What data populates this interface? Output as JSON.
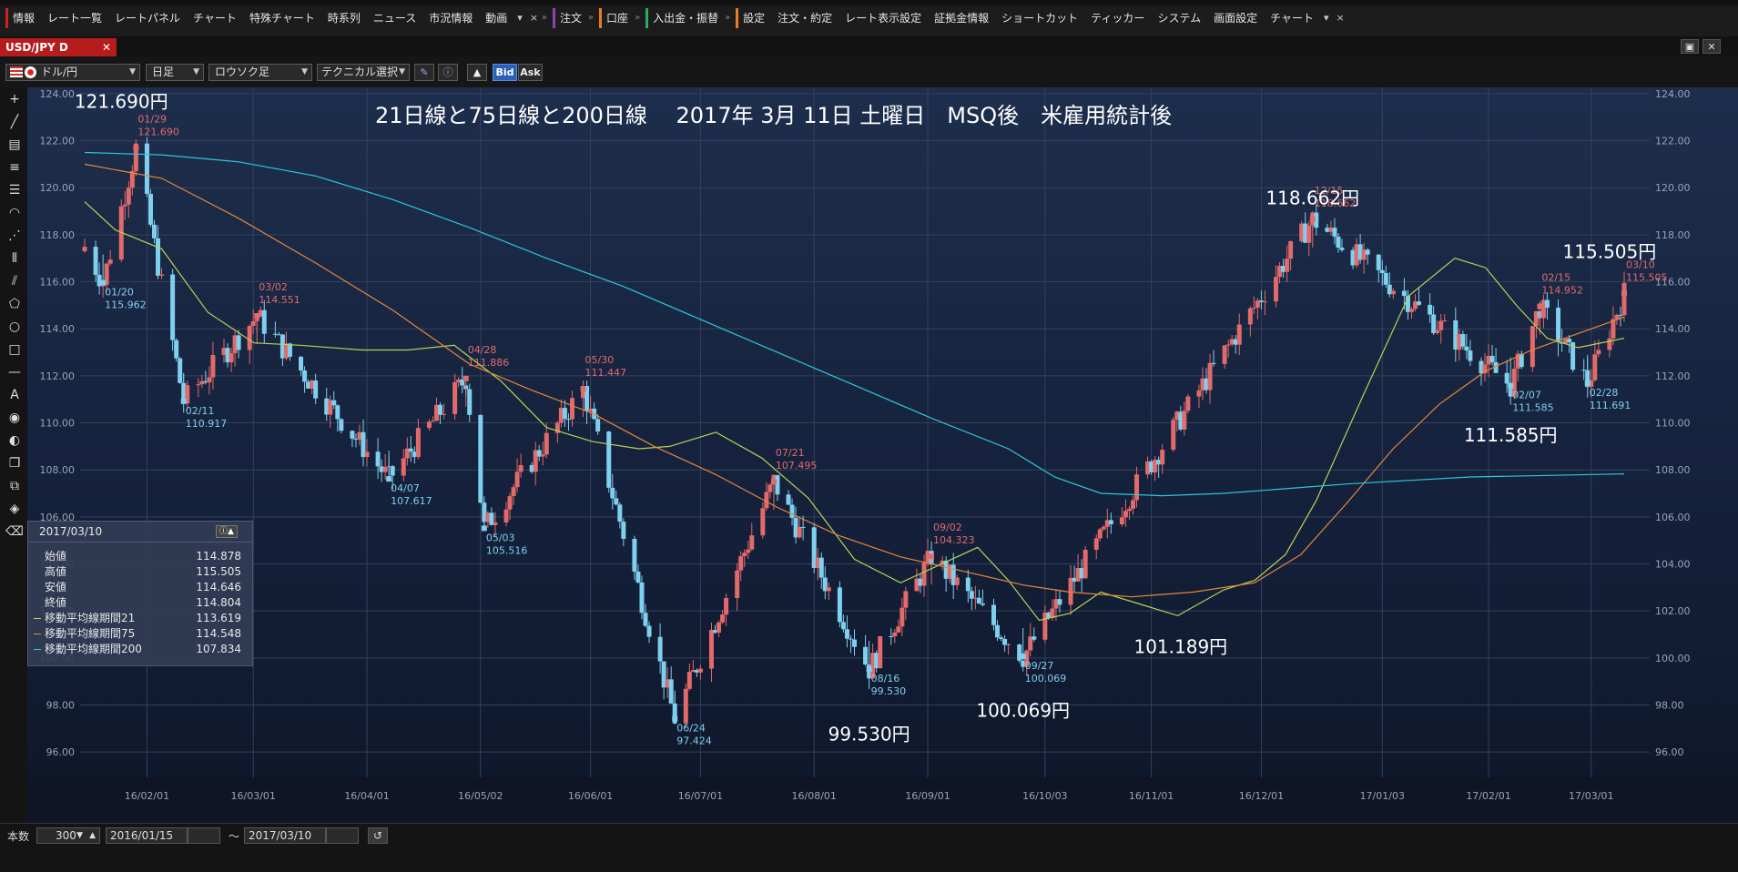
{
  "menubar": {
    "items": [
      {
        "label": "情報",
        "mark": "#cc2222"
      },
      {
        "label": "レート一覧"
      },
      {
        "label": "レートパネル"
      },
      {
        "label": "チャート"
      },
      {
        "label": "特殊チャート"
      },
      {
        "label": "時系列"
      },
      {
        "label": "ニュース"
      },
      {
        "label": "市況情報"
      },
      {
        "label": "動画"
      },
      {
        "label": "注文",
        "mark": "#8e44ad"
      },
      {
        "label": "口座",
        "mark": "#e67e22"
      },
      {
        "label": "入出金・振替",
        "mark": "#27ae60"
      },
      {
        "label": "設定",
        "mark": "#e67e22"
      },
      {
        "label": "注文・約定"
      },
      {
        "label": "レート表示設定"
      },
      {
        "label": "証拠金情報"
      },
      {
        "label": "ショートカット"
      },
      {
        "label": "ティッカー"
      },
      {
        "label": "システム"
      },
      {
        "label": "画面設定"
      },
      {
        "label": "チャート"
      }
    ]
  },
  "tab": {
    "title": "USD/JPY D",
    "close": "✕"
  },
  "toolbar": {
    "pair": "ドル/円",
    "period": "日足",
    "chart_kind": "ロウソク足",
    "technical": "テクニカル選択",
    "bid": "Bid",
    "ask": "Ask"
  },
  "bottom": {
    "count_label": "本数",
    "count_value": "300",
    "from_date": "2016/01/15",
    "tilde": "〜",
    "to_date": "2017/03/10"
  },
  "infobox": {
    "date": "2017/03/10",
    "rows": [
      {
        "k": "始値",
        "v": "114.878"
      },
      {
        "k": "高値",
        "v": "115.505"
      },
      {
        "k": "安値",
        "v": "114.646"
      },
      {
        "k": "終値",
        "v": "114.804"
      },
      {
        "k": "移動平均線期間21",
        "v": "113.619",
        "color": "#b7d354"
      },
      {
        "k": "移動平均線期間75",
        "v": "114.548",
        "color": "#e8873a"
      },
      {
        "k": "移動平均線期間200",
        "v": "107.834",
        "color": "#2fc6dc"
      }
    ]
  },
  "chart_data": {
    "type": "candlestick",
    "title": "21日線と75日線と200日線　 2017年 3月 11日 土曜日　MSQ後　米雇用統計後",
    "ylim": [
      95,
      124.5
    ],
    "yticks": [
      "124.00",
      "122.00",
      "120.00",
      "118.00",
      "116.00",
      "114.00",
      "112.00",
      "110.00",
      "108.00",
      "106.00",
      "104.00",
      "102.00",
      "100.00",
      "98.00",
      "96.00"
    ],
    "xticks": [
      "16/02/01",
      "16/03/01",
      "16/04/01",
      "16/05/02",
      "16/06/01",
      "16/07/01",
      "16/08/01",
      "16/09/01",
      "16/10/03",
      "16/11/01",
      "16/12/01",
      "17/01/03",
      "17/02/01",
      "17/03/01"
    ],
    "x_start": "2016/01/15",
    "x_end": "2017/03/10",
    "high_color": "#e26a6a",
    "low_color": "#7fd0ef",
    "key_points": [
      {
        "date": "2016/01/20",
        "price": 115.962,
        "date_label": "01/20",
        "price_label": "115.962",
        "kind": "low"
      },
      {
        "date": "2016/01/29",
        "price": 121.69,
        "date_label": "01/29",
        "price_label": "121.690",
        "kind": "high"
      },
      {
        "date": "2016/02/11",
        "price": 110.917,
        "date_label": "02/11",
        "price_label": "110.917",
        "kind": "low"
      },
      {
        "date": "2016/03/02",
        "price": 114.551,
        "date_label": "03/02",
        "price_label": "114.551",
        "kind": "high"
      },
      {
        "date": "2016/04/07",
        "price": 107.617,
        "date_label": "04/07",
        "price_label": "107.617",
        "kind": "low"
      },
      {
        "date": "2016/04/28",
        "price": 111.886,
        "date_label": "04/28",
        "price_label": "111.886",
        "kind": "high"
      },
      {
        "date": "2016/05/03",
        "price": 105.516,
        "date_label": "05/03",
        "price_label": "105.516",
        "kind": "low"
      },
      {
        "date": "2016/05/30",
        "price": 111.447,
        "date_label": "05/30",
        "price_label": "111.447",
        "kind": "high"
      },
      {
        "date": "2016/06/24",
        "price": 97.424,
        "date_label": "06/24",
        "price_label": "97.424",
        "kind": "low"
      },
      {
        "date": "2016/07/21",
        "price": 107.495,
        "date_label": "07/21",
        "price_label": "107.495",
        "kind": "high"
      },
      {
        "date": "2016/08/16",
        "price": 99.53,
        "date_label": "08/16",
        "price_label": "99.530",
        "kind": "low"
      },
      {
        "date": "2016/09/02",
        "price": 104.323,
        "date_label": "09/02",
        "price_label": "104.323",
        "kind": "high"
      },
      {
        "date": "2016/09/27",
        "price": 100.069,
        "date_label": "09/27",
        "price_label": "100.069",
        "kind": "low"
      },
      {
        "date": "2016/12/15",
        "price": 118.662,
        "date_label": "12/15",
        "price_label": "118.662",
        "kind": "high"
      },
      {
        "date": "2017/02/07",
        "price": 111.585,
        "date_label": "02/07",
        "price_label": "111.585",
        "kind": "low"
      },
      {
        "date": "2017/02/15",
        "price": 114.952,
        "date_label": "02/15",
        "price_label": "114.952",
        "kind": "high"
      },
      {
        "date": "2017/02/28",
        "price": 111.691,
        "date_label": "02/28",
        "price_label": "111.691",
        "kind": "low"
      },
      {
        "date": "2017/03/10",
        "price": 115.505,
        "date_label": "03/10",
        "price_label": "115.505",
        "kind": "high"
      }
    ],
    "big_annotations": [
      {
        "text": "121.690円",
        "date": "2016/01/25",
        "price": 123.4
      },
      {
        "text": "118.662円",
        "date": "2016/12/15",
        "price": 119.3
      },
      {
        "text": "115.505円",
        "date": "2017/03/06",
        "price": 117.0
      },
      {
        "text": "111.585円",
        "date": "2017/02/07",
        "price": 109.2
      },
      {
        "text": "101.189円",
        "date": "2016/11/09",
        "price": 100.2
      },
      {
        "text": "100.069円",
        "date": "2016/09/27",
        "price": 97.5
      },
      {
        "text": "99.530円",
        "date": "2016/08/16",
        "price": 96.5
      }
    ],
    "series": [
      {
        "name": "移動平均線期間21",
        "color": "#b7d354",
        "values": [
          [
            0,
            119.4
          ],
          [
            0.02,
            118.2
          ],
          [
            0.05,
            117.4
          ],
          [
            0.08,
            114.7
          ],
          [
            0.11,
            113.4
          ],
          [
            0.14,
            113.3
          ],
          [
            0.18,
            113.1
          ],
          [
            0.21,
            113.1
          ],
          [
            0.24,
            113.3
          ],
          [
            0.27,
            111.8
          ],
          [
            0.3,
            109.8
          ],
          [
            0.33,
            109.2
          ],
          [
            0.36,
            108.9
          ],
          [
            0.38,
            109.0
          ],
          [
            0.41,
            109.6
          ],
          [
            0.44,
            108.5
          ],
          [
            0.47,
            106.8
          ],
          [
            0.5,
            104.2
          ],
          [
            0.53,
            103.2
          ],
          [
            0.55,
            103.8
          ],
          [
            0.58,
            104.7
          ],
          [
            0.6,
            103.3
          ],
          [
            0.62,
            101.6
          ],
          [
            0.64,
            101.9
          ],
          [
            0.66,
            102.8
          ],
          [
            0.69,
            102.2
          ],
          [
            0.71,
            101.8
          ],
          [
            0.74,
            102.9
          ],
          [
            0.76,
            103.3
          ],
          [
            0.78,
            104.4
          ],
          [
            0.8,
            106.7
          ],
          [
            0.83,
            111.1
          ],
          [
            0.86,
            115.4
          ],
          [
            0.89,
            117.0
          ],
          [
            0.91,
            116.6
          ],
          [
            0.93,
            115.0
          ],
          [
            0.95,
            113.6
          ],
          [
            0.97,
            113.2
          ],
          [
            1.0,
            113.6
          ]
        ]
      },
      {
        "name": "移動平均線期間75",
        "color": "#e8873a",
        "values": [
          [
            0,
            121.0
          ],
          [
            0.05,
            120.4
          ],
          [
            0.1,
            118.7
          ],
          [
            0.15,
            116.8
          ],
          [
            0.2,
            114.8
          ],
          [
            0.25,
            112.5
          ],
          [
            0.29,
            111.4
          ],
          [
            0.33,
            110.4
          ],
          [
            0.37,
            109.0
          ],
          [
            0.41,
            107.8
          ],
          [
            0.45,
            106.4
          ],
          [
            0.49,
            105.2
          ],
          [
            0.53,
            104.3
          ],
          [
            0.57,
            103.7
          ],
          [
            0.61,
            103.1
          ],
          [
            0.64,
            102.8
          ],
          [
            0.68,
            102.6
          ],
          [
            0.72,
            102.8
          ],
          [
            0.76,
            103.2
          ],
          [
            0.79,
            104.4
          ],
          [
            0.82,
            106.6
          ],
          [
            0.85,
            108.9
          ],
          [
            0.88,
            110.8
          ],
          [
            0.91,
            112.2
          ],
          [
            0.94,
            113.1
          ],
          [
            0.97,
            113.8
          ],
          [
            1.0,
            114.5
          ]
        ]
      },
      {
        "name": "移動平均線期間200",
        "color": "#2fc6dc",
        "values": [
          [
            0,
            121.5
          ],
          [
            0.05,
            121.4
          ],
          [
            0.1,
            121.1
          ],
          [
            0.15,
            120.5
          ],
          [
            0.2,
            119.5
          ],
          [
            0.25,
            118.3
          ],
          [
            0.3,
            117.0
          ],
          [
            0.35,
            115.8
          ],
          [
            0.4,
            114.4
          ],
          [
            0.45,
            113.0
          ],
          [
            0.5,
            111.6
          ],
          [
            0.55,
            110.2
          ],
          [
            0.6,
            108.9
          ],
          [
            0.63,
            107.7
          ],
          [
            0.66,
            107.0
          ],
          [
            0.7,
            106.9
          ],
          [
            0.74,
            107.0
          ],
          [
            0.78,
            107.2
          ],
          [
            0.82,
            107.4
          ],
          [
            0.86,
            107.55
          ],
          [
            0.9,
            107.7
          ],
          [
            0.94,
            107.75
          ],
          [
            1.0,
            107.83
          ]
        ]
      }
    ]
  }
}
